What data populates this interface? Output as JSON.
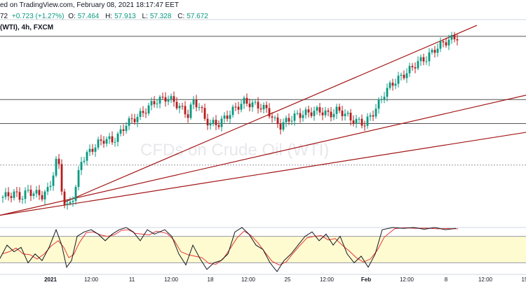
{
  "header": {
    "line1": "ed on TradingView.com, February 08, 2021 18:17:47 EET",
    "line2": {
      "prefix": "72",
      "change": "+0.723 (+1.27%)",
      "o_label": "O:",
      "o_value": "57.464",
      "h_label": "H:",
      "h_value": "57.913",
      "l_label": "L:",
      "l_value": "57.328",
      "c_label": "C:",
      "c_value": "57.672"
    },
    "line3": "(WTI), 4h, FXCM"
  },
  "watermark": "CFDs on Crude Oil (WTI)",
  "colors": {
    "up": "#089981",
    "down": "#b71c1c",
    "trendline": "#a31515",
    "level": "#555555",
    "oscillator_band": "#fffbd1",
    "stoch_k": "#131722",
    "stoch_d": "#e53935"
  },
  "x_axis": {
    "ticks": [
      "2021",
      "12:00",
      "11",
      "12:00",
      "18",
      "12:00",
      "25",
      "12:00",
      "Feb",
      "12:00",
      "8",
      "12:00",
      "15"
    ]
  },
  "chart_data": {
    "type": "candlestick",
    "timeframe": "4h",
    "close_points": [
      [
        0,
        51.5
      ],
      [
        10,
        51.6
      ],
      [
        20,
        51.7
      ],
      [
        30,
        51.5
      ],
      [
        40,
        51.8
      ],
      [
        50,
        51.7
      ],
      [
        60,
        51.6
      ],
      [
        70,
        51.9
      ],
      [
        78,
        52.9
      ],
      [
        82,
        53.4
      ],
      [
        86,
        52.5
      ],
      [
        90,
        51.4
      ],
      [
        95,
        51.0
      ],
      [
        100,
        51.3
      ],
      [
        105,
        51.6
      ],
      [
        110,
        52.2
      ],
      [
        115,
        53.2
      ],
      [
        122,
        53.4
      ],
      [
        130,
        53.7
      ],
      [
        140,
        54.0
      ],
      [
        150,
        54.2
      ],
      [
        160,
        54.1
      ],
      [
        170,
        54.4
      ],
      [
        180,
        54.9
      ],
      [
        190,
        55.1
      ],
      [
        200,
        55.3
      ],
      [
        210,
        55.6
      ],
      [
        220,
        55.9
      ],
      [
        230,
        56.0
      ],
      [
        238,
        56.1
      ],
      [
        248,
        55.9
      ],
      [
        258,
        55.6
      ],
      [
        268,
        55.3
      ],
      [
        275,
        55.9
      ],
      [
        285,
        55.7
      ],
      [
        292,
        55.1
      ],
      [
        300,
        54.9
      ],
      [
        312,
        54.9
      ],
      [
        322,
        55.2
      ],
      [
        335,
        55.6
      ],
      [
        348,
        55.9
      ],
      [
        358,
        55.8
      ],
      [
        370,
        55.7
      ],
      [
        382,
        55.5
      ],
      [
        392,
        55.0
      ],
      [
        400,
        54.8
      ],
      [
        412,
        55.1
      ],
      [
        425,
        55.3
      ],
      [
        440,
        55.4
      ],
      [
        455,
        55.5
      ],
      [
        470,
        55.3
      ],
      [
        480,
        55.5
      ],
      [
        490,
        55.4
      ],
      [
        500,
        55.1
      ],
      [
        510,
        55.0
      ],
      [
        520,
        54.9
      ],
      [
        530,
        55.3
      ],
      [
        540,
        55.8
      ],
      [
        548,
        56.3
      ],
      [
        558,
        56.7
      ],
      [
        570,
        57.0
      ],
      [
        582,
        57.3
      ],
      [
        595,
        57.7
      ],
      [
        608,
        57.9
      ],
      [
        620,
        58.3
      ],
      [
        632,
        58.6
      ],
      [
        645,
        58.8
      ],
      [
        655,
        58.9
      ]
    ],
    "horizontal_levels": [
      58.9,
      56.0,
      54.9,
      53.0
    ],
    "trendlines": [
      {
        "from": [
          92,
          51.3
        ],
        "to": [
          680,
          59.4
        ]
      },
      {
        "from": [
          0,
          50.7
        ],
        "to": [
          750,
          56.2
        ]
      },
      {
        "from": [
          0,
          50.7
        ],
        "to": [
          750,
          54.5
        ]
      }
    ],
    "oscillator": {
      "type": "stochastic",
      "overbought": 80,
      "oversold": 20,
      "k_points": [
        [
          0,
          30
        ],
        [
          10,
          60
        ],
        [
          20,
          45
        ],
        [
          30,
          55
        ],
        [
          40,
          20
        ],
        [
          50,
          40
        ],
        [
          60,
          25
        ],
        [
          70,
          55
        ],
        [
          80,
          95
        ],
        [
          88,
          60
        ],
        [
          95,
          10
        ],
        [
          102,
          25
        ],
        [
          110,
          80
        ],
        [
          120,
          90
        ],
        [
          130,
          95
        ],
        [
          140,
          85
        ],
        [
          150,
          70
        ],
        [
          160,
          85
        ],
        [
          170,
          95
        ],
        [
          180,
          100
        ],
        [
          190,
          90
        ],
        [
          200,
          70
        ],
        [
          210,
          95
        ],
        [
          220,
          85
        ],
        [
          235,
          95
        ],
        [
          245,
          80
        ],
        [
          255,
          40
        ],
        [
          265,
          15
        ],
        [
          275,
          60
        ],
        [
          285,
          30
        ],
        [
          295,
          5
        ],
        [
          305,
          20
        ],
        [
          315,
          25
        ],
        [
          325,
          40
        ],
        [
          335,
          90
        ],
        [
          345,
          100
        ],
        [
          355,
          85
        ],
        [
          365,
          60
        ],
        [
          375,
          50
        ],
        [
          385,
          20
        ],
        [
          395,
          0
        ],
        [
          405,
          25
        ],
        [
          415,
          40
        ],
        [
          425,
          60
        ],
        [
          435,
          80
        ],
        [
          445,
          90
        ],
        [
          455,
          70
        ],
        [
          465,
          85
        ],
        [
          475,
          60
        ],
        [
          485,
          80
        ],
        [
          495,
          40
        ],
        [
          505,
          20
        ],
        [
          515,
          35
        ],
        [
          525,
          10
        ],
        [
          535,
          40
        ],
        [
          545,
          95
        ],
        [
          560,
          100
        ],
        [
          575,
          98
        ],
        [
          590,
          100
        ],
        [
          605,
          96
        ],
        [
          620,
          100
        ],
        [
          635,
          95
        ],
        [
          650,
          98
        ]
      ]
    }
  }
}
